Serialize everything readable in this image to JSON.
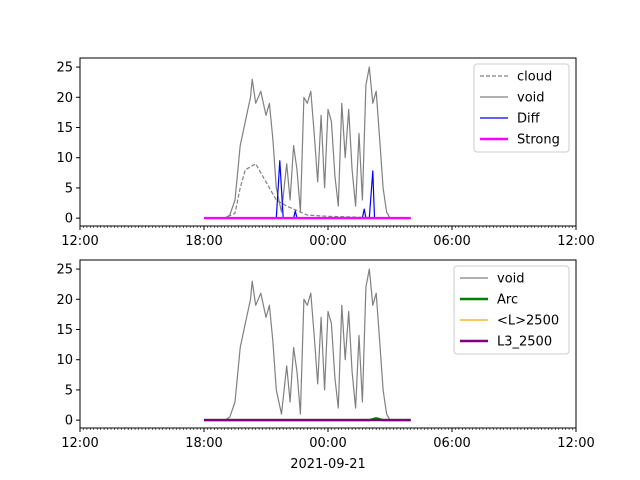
{
  "chart_data": [
    {
      "type": "line",
      "panel": "top",
      "x_axis": {
        "type": "time",
        "range": [
          "2021-09-20 12:00",
          "2021-09-21 12:00"
        ],
        "ticks": [
          "12:00",
          "18:00",
          "00:00",
          "06:00",
          "12:00"
        ],
        "minor_ticks": "every 10 minutes"
      },
      "y_axis": {
        "range": [
          -1.3,
          26.5
        ],
        "ticks": [
          0,
          5,
          10,
          15,
          20,
          25
        ]
      },
      "grid": false,
      "legend": {
        "placement": "top-right",
        "entries": [
          {
            "label": "cloud",
            "color": "#808080",
            "style": "dashed"
          },
          {
            "label": "void",
            "color": "#808080",
            "style": "solid"
          },
          {
            "label": "Diff",
            "color": "#0000ff",
            "style": "solid"
          },
          {
            "label": "Strong",
            "color": "#ff00ff",
            "style": "solid-thick"
          }
        ]
      },
      "series": [
        {
          "name": "cloud",
          "color": "#808080",
          "style": "dashed",
          "points": [
            [
              "2021-09-20 18:00",
              0
            ],
            [
              "2021-09-20 19:00",
              0
            ],
            [
              "2021-09-20 19:30",
              0.8
            ],
            [
              "2021-09-20 19:45",
              5
            ],
            [
              "2021-09-20 20:00",
              8
            ],
            [
              "2021-09-20 20:30",
              9
            ],
            [
              "2021-09-20 21:00",
              6
            ],
            [
              "2021-09-20 21:30",
              3
            ],
            [
              "2021-09-20 22:00",
              2
            ],
            [
              "2021-09-20 23:00",
              0.5
            ],
            [
              "2021-09-21 00:00",
              0.3
            ],
            [
              "2021-09-21 01:00",
              0.2
            ],
            [
              "2021-09-21 02:00",
              0.1
            ],
            [
              "2021-09-21 03:00",
              0
            ],
            [
              "2021-09-21 04:00",
              0
            ]
          ]
        },
        {
          "name": "void",
          "color": "#808080",
          "style": "solid",
          "points": [
            [
              "2021-09-20 18:00",
              0
            ],
            [
              "2021-09-20 19:00",
              0
            ],
            [
              "2021-09-20 19:15",
              0.5
            ],
            [
              "2021-09-20 19:30",
              3
            ],
            [
              "2021-09-20 19:45",
              12
            ],
            [
              "2021-09-20 20:00",
              16
            ],
            [
              "2021-09-20 20:15",
              20
            ],
            [
              "2021-09-20 20:20",
              23
            ],
            [
              "2021-09-20 20:30",
              19
            ],
            [
              "2021-09-20 20:45",
              21
            ],
            [
              "2021-09-20 21:00",
              17
            ],
            [
              "2021-09-20 21:10",
              19
            ],
            [
              "2021-09-20 21:20",
              13
            ],
            [
              "2021-09-20 21:30",
              5
            ],
            [
              "2021-09-20 21:45",
              1
            ],
            [
              "2021-09-20 22:00",
              9
            ],
            [
              "2021-09-20 22:10",
              3
            ],
            [
              "2021-09-20 22:20",
              12
            ],
            [
              "2021-09-20 22:30",
              8
            ],
            [
              "2021-09-20 22:40",
              1
            ],
            [
              "2021-09-20 22:50",
              20
            ],
            [
              "2021-09-20 23:00",
              19
            ],
            [
              "2021-09-20 23:10",
              21
            ],
            [
              "2021-09-20 23:20",
              14
            ],
            [
              "2021-09-20 23:30",
              6
            ],
            [
              "2021-09-20 23:40",
              17
            ],
            [
              "2021-09-20 23:50",
              5
            ],
            [
              "2021-09-21 00:00",
              18
            ],
            [
              "2021-09-21 00:10",
              16
            ],
            [
              "2021-09-21 00:20",
              7
            ],
            [
              "2021-09-21 00:30",
              2
            ],
            [
              "2021-09-21 00:40",
              19
            ],
            [
              "2021-09-21 00:50",
              10
            ],
            [
              "2021-09-21 01:00",
              18
            ],
            [
              "2021-09-21 01:10",
              8
            ],
            [
              "2021-09-21 01:20",
              2
            ],
            [
              "2021-09-21 01:30",
              14
            ],
            [
              "2021-09-21 01:40",
              3
            ],
            [
              "2021-09-21 01:50",
              22
            ],
            [
              "2021-09-21 02:00",
              25
            ],
            [
              "2021-09-21 02:10",
              19
            ],
            [
              "2021-09-21 02:20",
              21
            ],
            [
              "2021-09-21 02:30",
              13
            ],
            [
              "2021-09-21 02:40",
              5
            ],
            [
              "2021-09-21 02:50",
              1
            ],
            [
              "2021-09-21 03:00",
              0
            ],
            [
              "2021-09-21 04:00",
              0
            ]
          ]
        },
        {
          "name": "Diff",
          "color": "#0000ff",
          "style": "solid",
          "points": [
            [
              "2021-09-20 18:00",
              0
            ],
            [
              "2021-09-20 21:30",
              0
            ],
            [
              "2021-09-20 21:40",
              9.5
            ],
            [
              "2021-09-20 21:50",
              0
            ],
            [
              "2021-09-20 22:20",
              0
            ],
            [
              "2021-09-20 22:25",
              1.2
            ],
            [
              "2021-09-20 22:30",
              0
            ],
            [
              "2021-09-21 01:40",
              0
            ],
            [
              "2021-09-21 01:45",
              1.5
            ],
            [
              "2021-09-21 01:50",
              0
            ],
            [
              "2021-09-21 02:00",
              0
            ],
            [
              "2021-09-21 02:10",
              7.8
            ],
            [
              "2021-09-21 02:15",
              0
            ],
            [
              "2021-09-21 04:00",
              0
            ]
          ]
        },
        {
          "name": "Strong",
          "color": "#ff00ff",
          "style": "solid-thick",
          "points": [
            [
              "2021-09-20 18:00",
              0
            ],
            [
              "2021-09-21 04:00",
              0
            ]
          ]
        }
      ]
    },
    {
      "type": "line",
      "panel": "bottom",
      "x_axis": {
        "type": "time",
        "range": [
          "2021-09-20 12:00",
          "2021-09-21 12:00"
        ],
        "ticks": [
          "12:00",
          "18:00",
          "00:00",
          "06:00",
          "12:00"
        ],
        "minor_ticks": "every 10 minutes"
      },
      "xlabel": "2021-09-21",
      "y_axis": {
        "range": [
          -1.3,
          26.5
        ],
        "ticks": [
          0,
          5,
          10,
          15,
          20,
          25
        ]
      },
      "grid": false,
      "legend": {
        "placement": "top-right",
        "entries": [
          {
            "label": "void",
            "color": "#808080",
            "style": "solid"
          },
          {
            "label": "Arc",
            "color": "#008000",
            "style": "solid-thick"
          },
          {
            "label": "<L>2500",
            "color": "#ffa500",
            "style": "solid"
          },
          {
            "label": "L3_2500",
            "color": "#800080",
            "style": "solid-thick"
          }
        ]
      },
      "series": [
        {
          "name": "void",
          "color": "#808080",
          "style": "solid",
          "points": [
            [
              "2021-09-20 18:00",
              0
            ],
            [
              "2021-09-20 19:00",
              0
            ],
            [
              "2021-09-20 19:15",
              0.5
            ],
            [
              "2021-09-20 19:30",
              3
            ],
            [
              "2021-09-20 19:45",
              12
            ],
            [
              "2021-09-20 20:00",
              16
            ],
            [
              "2021-09-20 20:15",
              20
            ],
            [
              "2021-09-20 20:20",
              23
            ],
            [
              "2021-09-20 20:30",
              19
            ],
            [
              "2021-09-20 20:45",
              21
            ],
            [
              "2021-09-20 21:00",
              17
            ],
            [
              "2021-09-20 21:10",
              19
            ],
            [
              "2021-09-20 21:20",
              13
            ],
            [
              "2021-09-20 21:30",
              5
            ],
            [
              "2021-09-20 21:45",
              1
            ],
            [
              "2021-09-20 22:00",
              9
            ],
            [
              "2021-09-20 22:10",
              3
            ],
            [
              "2021-09-20 22:20",
              12
            ],
            [
              "2021-09-20 22:30",
              8
            ],
            [
              "2021-09-20 22:40",
              1
            ],
            [
              "2021-09-20 22:50",
              20
            ],
            [
              "2021-09-20 23:00",
              19
            ],
            [
              "2021-09-20 23:10",
              21
            ],
            [
              "2021-09-20 23:20",
              14
            ],
            [
              "2021-09-20 23:30",
              6
            ],
            [
              "2021-09-20 23:40",
              17
            ],
            [
              "2021-09-20 23:50",
              5
            ],
            [
              "2021-09-21 00:00",
              18
            ],
            [
              "2021-09-21 00:10",
              16
            ],
            [
              "2021-09-21 00:20",
              7
            ],
            [
              "2021-09-21 00:30",
              2
            ],
            [
              "2021-09-21 00:40",
              19
            ],
            [
              "2021-09-21 00:50",
              10
            ],
            [
              "2021-09-21 01:00",
              18
            ],
            [
              "2021-09-21 01:10",
              8
            ],
            [
              "2021-09-21 01:20",
              2
            ],
            [
              "2021-09-21 01:30",
              14
            ],
            [
              "2021-09-21 01:40",
              3
            ],
            [
              "2021-09-21 01:50",
              22
            ],
            [
              "2021-09-21 02:00",
              25
            ],
            [
              "2021-09-21 02:10",
              19
            ],
            [
              "2021-09-21 02:20",
              21
            ],
            [
              "2021-09-21 02:30",
              13
            ],
            [
              "2021-09-21 02:40",
              5
            ],
            [
              "2021-09-21 02:50",
              1
            ],
            [
              "2021-09-21 03:00",
              0
            ],
            [
              "2021-09-21 04:00",
              0
            ]
          ]
        },
        {
          "name": "Arc",
          "color": "#008000",
          "style": "solid-thick",
          "points": [
            [
              "2021-09-20 18:00",
              0
            ],
            [
              "2021-09-21 02:00",
              0
            ],
            [
              "2021-09-21 02:20",
              0.3
            ],
            [
              "2021-09-21 02:40",
              0
            ],
            [
              "2021-09-21 04:00",
              0
            ]
          ]
        },
        {
          "name": "<L>2500",
          "color": "#ffa500",
          "style": "solid",
          "points": [
            [
              "2021-09-20 18:00",
              0
            ],
            [
              "2021-09-21 04:00",
              0
            ]
          ]
        },
        {
          "name": "L3_2500",
          "color": "#800080",
          "style": "solid-thick",
          "points": [
            [
              "2021-09-20 18:00",
              0
            ],
            [
              "2021-09-21 04:00",
              0
            ]
          ]
        }
      ]
    }
  ]
}
